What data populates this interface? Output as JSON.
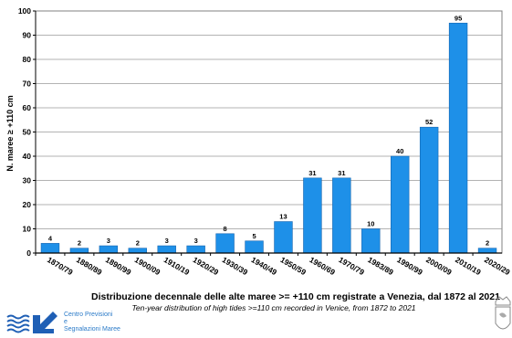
{
  "chart_data": {
    "type": "bar",
    "ylabel": "N. maree ≥ +110 cm",
    "xlabel": "",
    "ylim": [
      0,
      100
    ],
    "yticks": [
      0,
      10,
      20,
      30,
      40,
      50,
      60,
      70,
      80,
      90,
      100
    ],
    "grid": true,
    "categories": [
      "1870/79",
      "1880/89",
      "1890/99",
      "1900/09",
      "1910/19",
      "1920/29",
      "1930/39",
      "1940/49",
      "1950/59",
      "1960/69",
      "1970/79",
      "1983/89",
      "1990/99",
      "2000/09",
      "2010/19",
      "2020/29"
    ],
    "values": [
      4,
      2,
      3,
      2,
      3,
      3,
      8,
      5,
      13,
      31,
      31,
      10,
      40,
      52,
      95,
      2
    ],
    "bar_color": "#1e90e8"
  },
  "title": "Distribuzione decennale delle alte maree >= +110 cm registrate a Venezia, dal 1872 al 2021",
  "subtitle": "Ten-year distribution of high tides >=110 cm recorded in Venice, from 1872 to 2021",
  "logo": {
    "line1": "Centro Previsioni",
    "line2": "e",
    "line3": "Segnalazioni Maree"
  }
}
